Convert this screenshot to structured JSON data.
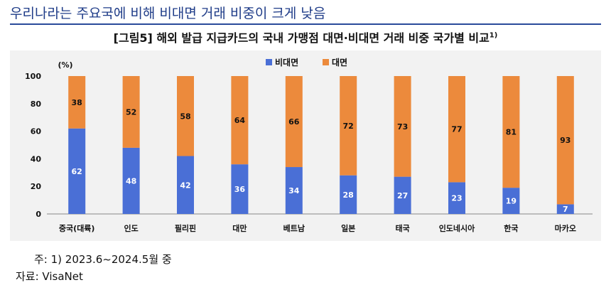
{
  "headline": "우리나라는 주요국에 비해 비대면 거래 비중이 크게 낮음",
  "figure_title": "[그림5] 해외 발급 지급카드의 국내 가맹점 대면·비대면 거래 비중 국가별 비교",
  "figure_title_sup": "1)",
  "note": "주: 1) 2023.6~2024.5월 중",
  "source": "자료: VisaNet",
  "colors": {
    "nonface": "#4a6fd6",
    "face": "#ec8a3c",
    "plot_bg": "#f2f2f2"
  },
  "chart_data": {
    "type": "bar",
    "stacked": true,
    "ylabel": "(%)",
    "ylim": [
      0,
      100
    ],
    "yticks": [
      0,
      20,
      40,
      60,
      80,
      100
    ],
    "grid": false,
    "legend_position": "top",
    "categories": [
      "중국(대륙)",
      "인도",
      "필리핀",
      "대만",
      "베트남",
      "일본",
      "태국",
      "인도네시아",
      "한국",
      "마카오"
    ],
    "series": [
      {
        "name": "비대면",
        "color": "#4a6fd6",
        "values": [
          62,
          48,
          42,
          36,
          34,
          28,
          27,
          23,
          19,
          7
        ]
      },
      {
        "name": "대면",
        "color": "#ec8a3c",
        "values": [
          38,
          52,
          58,
          64,
          66,
          72,
          73,
          77,
          81,
          93
        ]
      }
    ]
  }
}
